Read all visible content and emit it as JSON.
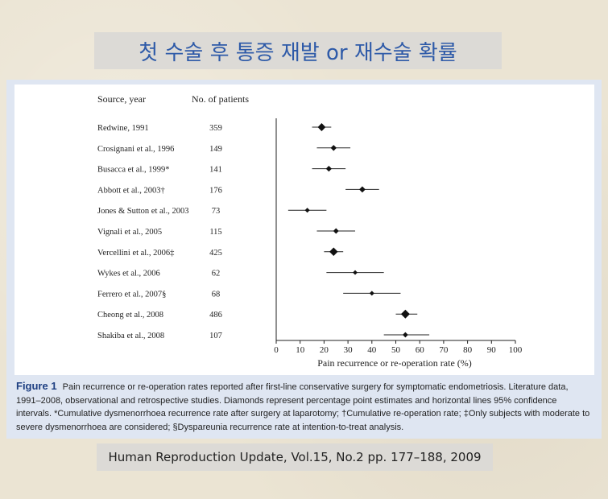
{
  "slide": {
    "title": "첫 수술 후 통증 재발 or 재수술 확률",
    "source": "Human Reproduction Update, Vol.15, No.2 pp. 177–188, 2009"
  },
  "caption": {
    "label": "Figure 1",
    "text": "Pain recurrence or re-operation rates reported after first-line conservative surgery for symptomatic endometriosis. Literature data, 1991–2008, observational and retrospective studies. Diamonds represent percentage point estimates and horizontal lines 95% confidence intervals. *Cumulative dysmenorrhoea recurrence rate after surgery at laparotomy; †Cumulative re-operation rate; ‡Only subjects with moderate to severe dysmenorrhoea are considered; §Dyspareunia recurrence rate at intention-to-treat analysis."
  },
  "chart_data": {
    "type": "scatter",
    "title": "",
    "column_headers": {
      "source": "Source, year",
      "patients": "No. of patients"
    },
    "xlabel": "Pain recurrence or re-operation rate (%)",
    "xlim": [
      0,
      100
    ],
    "xticks": [
      "0",
      "10",
      "20",
      "30",
      "40",
      "50",
      "60",
      "70",
      "80",
      "90",
      "100"
    ],
    "rows": [
      {
        "source": "Redwine, 1991",
        "patients": "359",
        "estimate": 19,
        "ci_low": 15,
        "ci_high": 23
      },
      {
        "source": "Crosignani et al., 1996",
        "patients": "149",
        "estimate": 24,
        "ci_low": 17,
        "ci_high": 31
      },
      {
        "source": "Busacca et al., 1999*",
        "patients": "141",
        "estimate": 22,
        "ci_low": 15,
        "ci_high": 29
      },
      {
        "source": "Abbott et al., 2003†",
        "patients": "176",
        "estimate": 36,
        "ci_low": 29,
        "ci_high": 43
      },
      {
        "source": "Jones & Sutton et al., 2003",
        "patients": "73",
        "estimate": 13,
        "ci_low": 5,
        "ci_high": 21
      },
      {
        "source": "Vignali et al., 2005",
        "patients": "115",
        "estimate": 25,
        "ci_low": 17,
        "ci_high": 33
      },
      {
        "source": "Vercellini et al., 2006‡",
        "patients": "425",
        "estimate": 24,
        "ci_low": 20,
        "ci_high": 28
      },
      {
        "source": "Wykes et al., 2006",
        "patients": "62",
        "estimate": 33,
        "ci_low": 21,
        "ci_high": 45
      },
      {
        "source": "Ferrero et al., 2007§",
        "patients": "68",
        "estimate": 40,
        "ci_low": 28,
        "ci_high": 52
      },
      {
        "source": "Cheong et al., 2008",
        "patients": "486",
        "estimate": 54,
        "ci_low": 50,
        "ci_high": 59
      },
      {
        "source": "Shakiba et al., 2008",
        "patients": "107",
        "estimate": 54,
        "ci_low": 45,
        "ci_high": 64
      }
    ]
  }
}
